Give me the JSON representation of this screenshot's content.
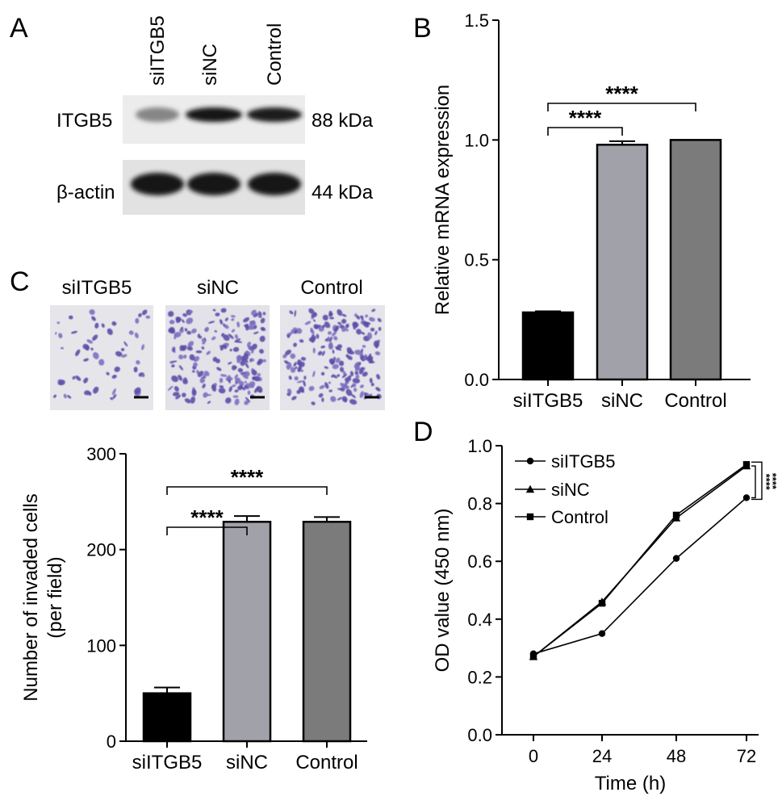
{
  "panels": {
    "A": {
      "letter": "A",
      "lanes": [
        "siITGB5",
        "siNC",
        "Control"
      ],
      "rows": [
        {
          "label": "ITGB5",
          "size": "88 kDa",
          "band_intensity": [
            0.35,
            0.95,
            0.9
          ]
        },
        {
          "label": "β-actin",
          "size": "44 kDa",
          "band_intensity": [
            0.95,
            0.95,
            0.95
          ]
        }
      ]
    },
    "B": {
      "letter": "B"
    },
    "C": {
      "letter": "C",
      "image_labels": [
        "siITGB5",
        "siNC",
        "Control"
      ]
    },
    "D": {
      "letter": "D"
    }
  },
  "chart_data": [
    {
      "id": "B",
      "type": "bar",
      "categories": [
        "siITGB5",
        "siNC",
        "Control"
      ],
      "values": [
        0.28,
        0.98,
        1.0
      ],
      "errors": [
        0.005,
        0.015,
        0
      ],
      "colors": [
        "#000000",
        "#a1a1a9",
        "#7b7b7b"
      ],
      "ylabel": "Relative mRNA expression",
      "ylim": [
        0,
        1.5
      ],
      "yticks": [
        "0.0",
        "0.5",
        "1.0",
        "1.5"
      ],
      "significance": [
        {
          "from": 0,
          "to": 1,
          "label": "****"
        },
        {
          "from": 0,
          "to": 2,
          "label": "****"
        }
      ]
    },
    {
      "id": "C",
      "type": "bar",
      "categories": [
        "siITGB5",
        "siNC",
        "Control"
      ],
      "values": [
        50,
        229,
        229
      ],
      "errors": [
        6,
        6,
        5
      ],
      "colors": [
        "#000000",
        "#a1a1a9",
        "#7b7b7b"
      ],
      "ylabel": "Number of invaded cells",
      "ylabel2": "(per field)",
      "ylim": [
        0,
        300
      ],
      "yticks": [
        "0",
        "100",
        "200",
        "300"
      ],
      "significance": [
        {
          "from": 0,
          "to": 1,
          "label": "****"
        },
        {
          "from": 0,
          "to": 2,
          "label": "****"
        }
      ]
    },
    {
      "id": "D",
      "type": "line",
      "x": [
        0,
        24,
        48,
        72
      ],
      "xticks": [
        "0",
        "24",
        "48",
        "72"
      ],
      "xlabel": "Time (h)",
      "ylabel": "OD value (450 nm)",
      "ylim": [
        0,
        1.0
      ],
      "yticks": [
        "0.0",
        "0.2",
        "0.4",
        "0.6",
        "0.8",
        "1.0"
      ],
      "series": [
        {
          "name": "siITGB5",
          "marker": "circle",
          "values": [
            0.28,
            0.35,
            0.61,
            0.82
          ]
        },
        {
          "name": "siNC",
          "marker": "triangle",
          "values": [
            0.27,
            0.46,
            0.75,
            0.93
          ]
        },
        {
          "name": "Control",
          "marker": "square",
          "values": [
            0.27,
            0.455,
            0.76,
            0.935
          ]
        }
      ],
      "legend": "top-left",
      "significance_label": "****"
    }
  ]
}
